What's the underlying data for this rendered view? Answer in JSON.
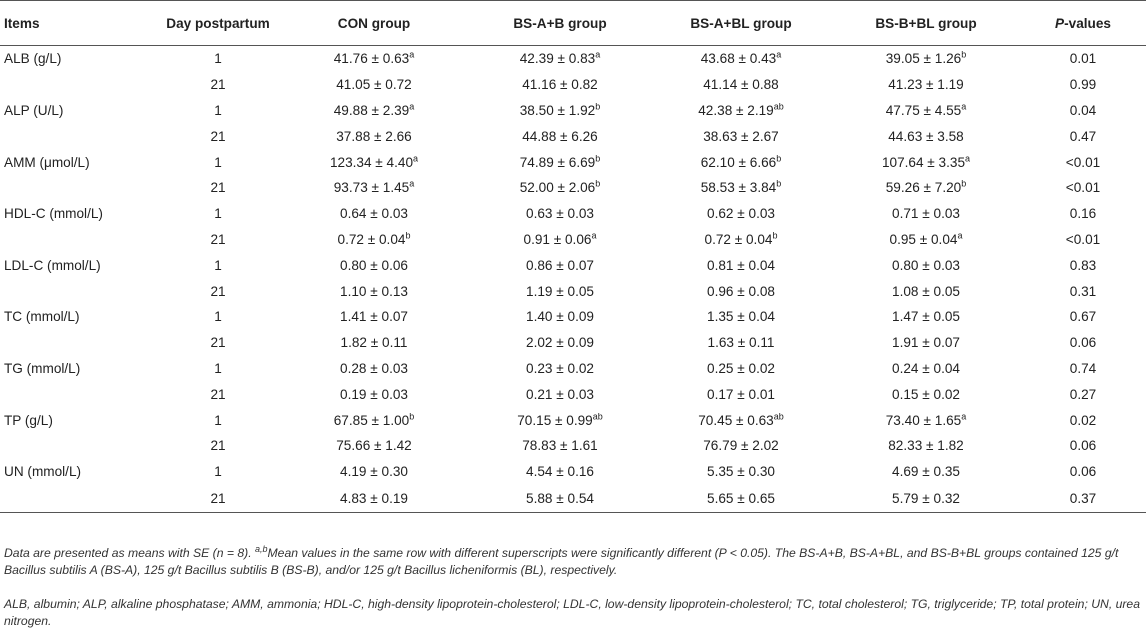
{
  "headers": [
    "Items",
    "Day postpartum",
    "CON group",
    "BS-A+B group",
    "BS-A+BL group",
    "BS-B+BL group",
    "P-values"
  ],
  "header_p_italic": "P",
  "header_p_rest": "-values",
  "rows": [
    {
      "item": "ALB (g/L)",
      "day": "1",
      "con": {
        "v": "41.76 ± 0.63",
        "s": "a"
      },
      "ab": {
        "v": "42.39 ± 0.83",
        "s": "a"
      },
      "abl": {
        "v": "43.68 ± 0.43",
        "s": "a"
      },
      "bbl": {
        "v": "39.05 ± 1.26",
        "s": "b"
      },
      "p": "0.01"
    },
    {
      "item": "",
      "day": "21",
      "con": {
        "v": "41.05 ± 0.72",
        "s": ""
      },
      "ab": {
        "v": "41.16 ± 0.82",
        "s": ""
      },
      "abl": {
        "v": "41.14 ± 0.88",
        "s": ""
      },
      "bbl": {
        "v": "41.23 ± 1.19",
        "s": ""
      },
      "p": "0.99"
    },
    {
      "item": "ALP (U/L)",
      "day": "1",
      "con": {
        "v": "49.88 ± 2.39",
        "s": "a"
      },
      "ab": {
        "v": "38.50 ± 1.92",
        "s": "b"
      },
      "abl": {
        "v": "42.38 ± 2.19",
        "s": "ab"
      },
      "bbl": {
        "v": "47.75 ± 4.55",
        "s": "a"
      },
      "p": "0.04"
    },
    {
      "item": "",
      "day": "21",
      "con": {
        "v": "37.88 ± 2.66",
        "s": ""
      },
      "ab": {
        "v": "44.88 ± 6.26",
        "s": ""
      },
      "abl": {
        "v": "38.63 ± 2.67",
        "s": ""
      },
      "bbl": {
        "v": "44.63 ± 3.58",
        "s": ""
      },
      "p": "0.47"
    },
    {
      "item": "AMM (μmol/L)",
      "day": "1",
      "con": {
        "v": "123.34 ± 4.40",
        "s": "a"
      },
      "ab": {
        "v": "74.89 ± 6.69",
        "s": "b"
      },
      "abl": {
        "v": "62.10 ± 6.66",
        "s": "b"
      },
      "bbl": {
        "v": "107.64 ± 3.35",
        "s": "a"
      },
      "p": "<0.01"
    },
    {
      "item": "",
      "day": "21",
      "con": {
        "v": "93.73 ± 1.45",
        "s": "a"
      },
      "ab": {
        "v": "52.00 ± 2.06",
        "s": "b"
      },
      "abl": {
        "v": "58.53 ± 3.84",
        "s": "b"
      },
      "bbl": {
        "v": "59.26 ± 7.20",
        "s": "b"
      },
      "p": "<0.01"
    },
    {
      "item": "HDL-C (mmol/L)",
      "day": "1",
      "con": {
        "v": "0.64 ± 0.03",
        "s": ""
      },
      "ab": {
        "v": "0.63 ± 0.03",
        "s": ""
      },
      "abl": {
        "v": "0.62 ± 0.03",
        "s": ""
      },
      "bbl": {
        "v": "0.71 ± 0.03",
        "s": ""
      },
      "p": "0.16"
    },
    {
      "item": "",
      "day": "21",
      "con": {
        "v": "0.72 ± 0.04",
        "s": "b"
      },
      "ab": {
        "v": "0.91 ± 0.06",
        "s": "a"
      },
      "abl": {
        "v": "0.72 ± 0.04",
        "s": "b"
      },
      "bbl": {
        "v": "0.95 ± 0.04",
        "s": "a"
      },
      "p": "<0.01"
    },
    {
      "item": "LDL-C (mmol/L)",
      "day": "1",
      "con": {
        "v": "0.80 ± 0.06",
        "s": ""
      },
      "ab": {
        "v": "0.86 ± 0.07",
        "s": ""
      },
      "abl": {
        "v": "0.81 ± 0.04",
        "s": ""
      },
      "bbl": {
        "v": "0.80 ± 0.03",
        "s": ""
      },
      "p": "0.83"
    },
    {
      "item": "",
      "day": "21",
      "con": {
        "v": "1.10 ± 0.13",
        "s": ""
      },
      "ab": {
        "v": "1.19 ± 0.05",
        "s": ""
      },
      "abl": {
        "v": "0.96 ± 0.08",
        "s": ""
      },
      "bbl": {
        "v": "1.08 ± 0.05",
        "s": ""
      },
      "p": "0.31"
    },
    {
      "item": "TC (mmol/L)",
      "day": "1",
      "con": {
        "v": "1.41 ± 0.07",
        "s": ""
      },
      "ab": {
        "v": "1.40 ± 0.09",
        "s": ""
      },
      "abl": {
        "v": "1.35 ± 0.04",
        "s": ""
      },
      "bbl": {
        "v": "1.47 ± 0.05",
        "s": ""
      },
      "p": "0.67"
    },
    {
      "item": "",
      "day": "21",
      "con": {
        "v": "1.82 ± 0.11",
        "s": ""
      },
      "ab": {
        "v": "2.02 ± 0.09",
        "s": ""
      },
      "abl": {
        "v": "1.63 ± 0.11",
        "s": ""
      },
      "bbl": {
        "v": "1.91 ± 0.07",
        "s": ""
      },
      "p": "0.06"
    },
    {
      "item": "TG (mmol/L)",
      "day": "1",
      "con": {
        "v": "0.28 ± 0.03",
        "s": ""
      },
      "ab": {
        "v": "0.23 ± 0.02",
        "s": ""
      },
      "abl": {
        "v": "0.25 ± 0.02",
        "s": ""
      },
      "bbl": {
        "v": "0.24 ± 0.04",
        "s": ""
      },
      "p": "0.74"
    },
    {
      "item": "",
      "day": "21",
      "con": {
        "v": "0.19 ± 0.03",
        "s": ""
      },
      "ab": {
        "v": "0.21 ± 0.03",
        "s": ""
      },
      "abl": {
        "v": "0.17 ± 0.01",
        "s": ""
      },
      "bbl": {
        "v": "0.15 ± 0.02",
        "s": ""
      },
      "p": "0.27"
    },
    {
      "item": "TP (g/L)",
      "day": "1",
      "con": {
        "v": "67.85 ± 1.00",
        "s": "b"
      },
      "ab": {
        "v": "70.15 ± 0.99",
        "s": "ab"
      },
      "abl": {
        "v": "70.45 ± 0.63",
        "s": "ab"
      },
      "bbl": {
        "v": "73.40 ± 1.65",
        "s": "a"
      },
      "p": "0.02"
    },
    {
      "item": "",
      "day": "21",
      "con": {
        "v": "75.66 ± 1.42",
        "s": ""
      },
      "ab": {
        "v": "78.83 ± 1.61",
        "s": ""
      },
      "abl": {
        "v": "76.79 ± 2.02",
        "s": ""
      },
      "bbl": {
        "v": "82.33 ± 1.82",
        "s": ""
      },
      "p": "0.06"
    },
    {
      "item": "UN (mmol/L)",
      "day": "1",
      "con": {
        "v": "4.19 ± 0.30",
        "s": ""
      },
      "ab": {
        "v": "4.54 ± 0.16",
        "s": ""
      },
      "abl": {
        "v": "5.35 ± 0.30",
        "s": ""
      },
      "bbl": {
        "v": "4.69 ± 0.35",
        "s": ""
      },
      "p": "0.06"
    },
    {
      "item": "",
      "day": "21",
      "con": {
        "v": "4.83 ± 0.19",
        "s": ""
      },
      "ab": {
        "v": "5.88 ± 0.54",
        "s": ""
      },
      "abl": {
        "v": "5.65 ± 0.65",
        "s": ""
      },
      "bbl": {
        "v": "5.79 ± 0.32",
        "s": ""
      },
      "p": "0.37"
    }
  ],
  "footnote1_a": "Data are presented as means with SE (n = 8). ",
  "footnote1_sup": "a,b",
  "footnote1_b": "Mean values in the same row with different superscripts were significantly different (P < 0.05). The BS-A+B, BS-A+BL, and BS-B+BL groups contained 125 g/t Bacillus subtilis A (BS-A), 125 g/t Bacillus subtilis B (BS-B), and/or 125 g/t Bacillus licheniformis (BL), respectively.",
  "footnote2": "ALB, albumin; ALP, alkaline phosphatase; AMM, ammonia; HDL-C, high-density lipoprotein-cholesterol; LDL-C, low-density lipoprotein-cholesterol; TC, total cholesterol; TG, triglyceride; TP, total protein; UN, urea nitrogen."
}
